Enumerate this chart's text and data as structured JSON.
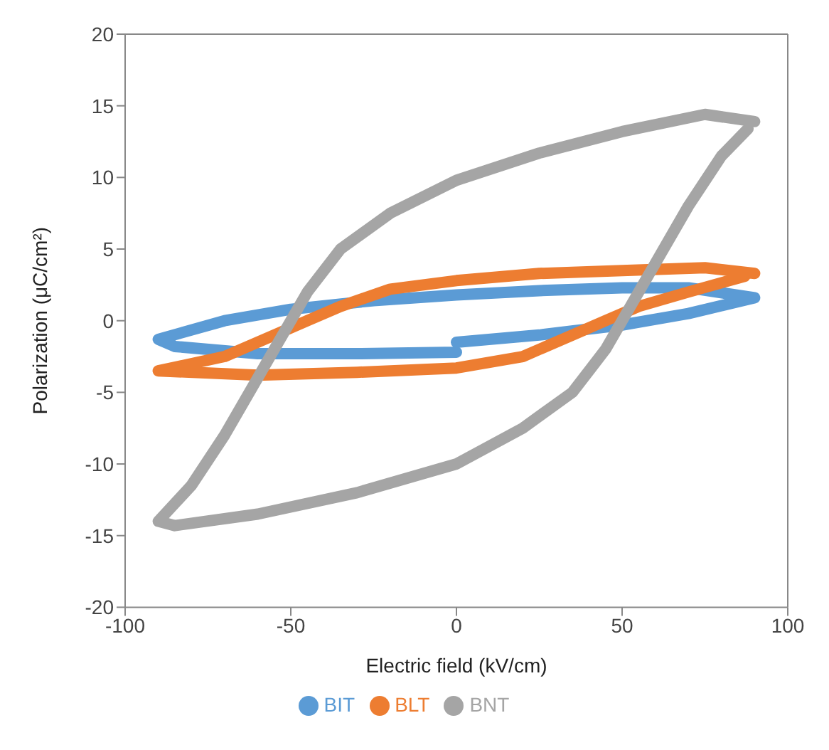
{
  "chart_data": {
    "type": "line",
    "xlabel": "Electric field (kV/cm)",
    "ylabel": "Polarization (μC/cm²)",
    "xlim": [
      -100,
      100
    ],
    "xticks": [
      -100,
      -50,
      0,
      50,
      100
    ],
    "ylim": [
      -20,
      20
    ],
    "yticks": [
      -20,
      -15,
      -10,
      -5,
      0,
      5,
      10,
      15,
      20
    ],
    "grid": false,
    "legend": "bottom",
    "line_style": "solid",
    "series": [
      {
        "name": "BIT",
        "color": "#5b9bd5",
        "x": [
          0,
          25,
          50,
          70,
          90,
          70,
          50,
          25,
          0,
          -25,
          -50,
          -70,
          -90,
          -85,
          -60,
          -30,
          0
        ],
        "values": [
          -1.5,
          -1,
          -0.3,
          0.5,
          1.6,
          2.3,
          2.3,
          2.1,
          1.8,
          1.4,
          0.8,
          0,
          -1.3,
          -1.8,
          -2.3,
          -2.3,
          -2.2
        ]
      },
      {
        "name": "BLT",
        "color": "#ed7d31",
        "x": [
          90,
          75,
          50,
          25,
          0,
          -20,
          -35,
          -45,
          -55,
          -70,
          -90,
          -60,
          -30,
          0,
          20,
          35,
          45,
          55,
          70,
          87
        ],
        "values": [
          3.3,
          3.7,
          3.5,
          3.3,
          2.8,
          2.2,
          1,
          0,
          -1,
          -2.5,
          -3.5,
          -3.8,
          -3.6,
          -3.3,
          -2.5,
          -1,
          0,
          1,
          2,
          3.1
        ]
      },
      {
        "name": "BNT",
        "color": "#a5a5a5",
        "x": [
          90,
          75,
          50,
          25,
          0,
          -20,
          -35,
          -45,
          -50,
          -60,
          -70,
          -80,
          -90,
          -85,
          -60,
          -30,
          0,
          20,
          35,
          45,
          50,
          60,
          70,
          80,
          88
        ],
        "values": [
          13.9,
          14.4,
          13.2,
          11.7,
          9.8,
          7.5,
          5,
          2,
          0,
          -4,
          -8,
          -11.5,
          -14,
          -14.3,
          -13.5,
          -12,
          -10,
          -7.5,
          -5,
          -2,
          0,
          4,
          8,
          11.5,
          13.4
        ]
      }
    ]
  }
}
